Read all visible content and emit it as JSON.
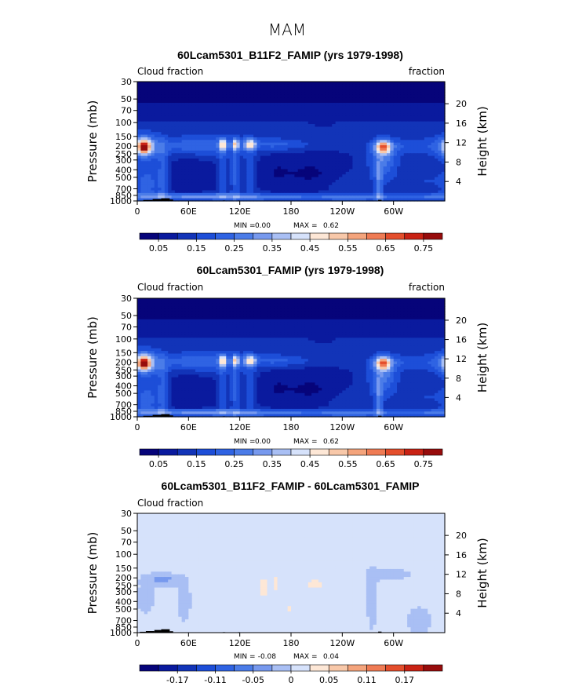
{
  "figure_title": "MAM",
  "chart_data": [
    {
      "type": "heatmap",
      "title": "60Lcam5301_B11F2_FAMIP (yrs 1979-1998)",
      "left_label": "Cloud fraction",
      "right_label": "fraction",
      "ylabel": "Pressure (mb)",
      "y2label": "Height (km)",
      "x_ticks": [
        "0",
        "60E",
        "120E",
        "180",
        "120W",
        "60W"
      ],
      "x_tick_values": [
        0,
        60,
        120,
        180,
        240,
        300
      ],
      "xlim": [
        0,
        360
      ],
      "pressure_ticks": [
        "30",
        "50",
        "70",
        "100",
        "150",
        "200",
        "250",
        "300",
        "400",
        "500",
        "700",
        "850",
        "1000"
      ],
      "pressure_values": [
        30,
        50,
        70,
        100,
        150,
        200,
        250,
        300,
        400,
        500,
        700,
        850,
        1000
      ],
      "height_ticks": [
        "20",
        "16",
        "12",
        "8",
        "4"
      ],
      "height_values": [
        20,
        16,
        12,
        8,
        4
      ],
      "min_label": "MIN =",
      "min": "0.00",
      "max_label": "MAX =",
      "max": "0.62",
      "colorbar_labels": [
        "0.05",
        "0.15",
        "0.25",
        "0.35",
        "0.45",
        "0.55",
        "0.65",
        "0.75"
      ],
      "colorbar_levels": 16,
      "field": {
        "bg": 0.1,
        "blobs": [
          {
            "lon": 8,
            "p": 205,
            "sx": 5,
            "sy": 0.13,
            "a": 0.5
          },
          {
            "lon": 8,
            "p": 205,
            "sx": 11,
            "sy": 0.3,
            "a": 0.18
          },
          {
            "lon": 12,
            "p": 600,
            "sx": 10,
            "sy": 0.35,
            "a": 0.12
          },
          {
            "lon": 30,
            "p": 450,
            "sx": 5,
            "sy": 0.6,
            "a": 0.12
          },
          {
            "lon": 45,
            "p": 200,
            "sx": 50,
            "sy": 0.22,
            "a": 0.08
          },
          {
            "lon": 82,
            "p": 190,
            "sx": 25,
            "sy": 0.2,
            "a": 0.08
          },
          {
            "lon": 100,
            "p": 190,
            "sx": 3,
            "sy": 0.12,
            "a": 0.3
          },
          {
            "lon": 100,
            "p": 450,
            "sx": 4,
            "sy": 0.6,
            "a": 0.12
          },
          {
            "lon": 115,
            "p": 190,
            "sx": 3,
            "sy": 0.12,
            "a": 0.3
          },
          {
            "lon": 115,
            "p": 450,
            "sx": 4,
            "sy": 0.6,
            "a": 0.12
          },
          {
            "lon": 132,
            "p": 190,
            "sx": 5,
            "sy": 0.12,
            "a": 0.3
          },
          {
            "lon": 132,
            "p": 400,
            "sx": 5,
            "sy": 0.55,
            "a": 0.1
          },
          {
            "lon": 160,
            "p": 190,
            "sx": 22,
            "sy": 0.15,
            "a": 0.08
          },
          {
            "lon": 190,
            "p": 190,
            "sx": 45,
            "sy": 0.1,
            "a": 0.04
          },
          {
            "lon": 288,
            "p": 205,
            "sx": 6,
            "sy": 0.13,
            "a": 0.45
          },
          {
            "lon": 288,
            "p": 300,
            "sx": 12,
            "sy": 0.4,
            "a": 0.16
          },
          {
            "lon": 283,
            "p": 620,
            "sx": 3,
            "sy": 0.5,
            "a": 0.15
          },
          {
            "lon": 320,
            "p": 200,
            "sx": 35,
            "sy": 0.18,
            "a": 0.07
          },
          {
            "lon": 180,
            "p": 900,
            "sx": 180,
            "sy": 0.07,
            "a": 0.15
          },
          {
            "lon": 60,
            "p": 860,
            "sx": 60,
            "sy": 0.06,
            "a": 0.12
          },
          {
            "lon": 340,
            "p": 560,
            "sx": 20,
            "sy": 0.25,
            "a": 0.05
          },
          {
            "lon": 250,
            "p": 650,
            "sx": 25,
            "sy": 0.3,
            "a": 0.04
          },
          {
            "lon": 60,
            "p": 500,
            "sx": 22,
            "sy": 0.4,
            "a": -0.05
          },
          {
            "lon": 205,
            "p": 450,
            "sx": 25,
            "sy": 0.35,
            "a": -0.06
          },
          {
            "lon": 160,
            "p": 420,
            "sx": 14,
            "sy": 0.35,
            "a": -0.04
          }
        ]
      },
      "terrain": [
        {
          "lon0": 0,
          "lon1": 7,
          "p_top": 990
        },
        {
          "lon0": 7,
          "lon1": 18,
          "p_top": 972
        },
        {
          "lon0": 18,
          "lon1": 28,
          "p_top": 945
        },
        {
          "lon0": 28,
          "lon1": 38,
          "p_top": 925
        },
        {
          "lon0": 38,
          "lon1": 42,
          "p_top": 960
        },
        {
          "lon0": 100,
          "lon1": 103,
          "p_top": 985
        },
        {
          "lon0": 118,
          "lon1": 120,
          "p_top": 985
        },
        {
          "lon0": 282,
          "lon1": 286,
          "p_top": 970
        },
        {
          "lon0": 286,
          "lon1": 310,
          "p_top": 992
        }
      ]
    },
    {
      "type": "heatmap",
      "title": "60Lcam5301_FAMIP (yrs 1979-1998)",
      "left_label": "Cloud fraction",
      "right_label": "fraction",
      "ylabel": "Pressure (mb)",
      "y2label": "Height (km)",
      "x_ticks": [
        "0",
        "60E",
        "120E",
        "180",
        "120W",
        "60W"
      ],
      "x_tick_values": [
        0,
        60,
        120,
        180,
        240,
        300
      ],
      "xlim": [
        0,
        360
      ],
      "pressure_ticks": [
        "30",
        "50",
        "70",
        "100",
        "150",
        "200",
        "250",
        "300",
        "400",
        "500",
        "700",
        "850",
        "1000"
      ],
      "pressure_values": [
        30,
        50,
        70,
        100,
        150,
        200,
        250,
        300,
        400,
        500,
        700,
        850,
        1000
      ],
      "height_ticks": [
        "20",
        "16",
        "12",
        "8",
        "4"
      ],
      "height_values": [
        20,
        16,
        12,
        8,
        4
      ],
      "min_label": "MIN =",
      "min": "0.00",
      "max_label": "MAX =",
      "max": "0.62",
      "colorbar_labels": [
        "0.05",
        "0.15",
        "0.25",
        "0.35",
        "0.45",
        "0.55",
        "0.65",
        "0.75"
      ],
      "colorbar_levels": 16,
      "field": {
        "bg": 0.1,
        "blobs": [
          {
            "lon": 8,
            "p": 205,
            "sx": 5,
            "sy": 0.13,
            "a": 0.52
          },
          {
            "lon": 8,
            "p": 205,
            "sx": 11,
            "sy": 0.3,
            "a": 0.18
          },
          {
            "lon": 12,
            "p": 600,
            "sx": 10,
            "sy": 0.35,
            "a": 0.12
          },
          {
            "lon": 30,
            "p": 450,
            "sx": 5,
            "sy": 0.6,
            "a": 0.12
          },
          {
            "lon": 45,
            "p": 200,
            "sx": 50,
            "sy": 0.22,
            "a": 0.08
          },
          {
            "lon": 82,
            "p": 190,
            "sx": 25,
            "sy": 0.2,
            "a": 0.08
          },
          {
            "lon": 100,
            "p": 190,
            "sx": 3,
            "sy": 0.12,
            "a": 0.3
          },
          {
            "lon": 100,
            "p": 450,
            "sx": 4,
            "sy": 0.6,
            "a": 0.12
          },
          {
            "lon": 115,
            "p": 190,
            "sx": 3,
            "sy": 0.12,
            "a": 0.3
          },
          {
            "lon": 115,
            "p": 450,
            "sx": 4,
            "sy": 0.6,
            "a": 0.12
          },
          {
            "lon": 132,
            "p": 190,
            "sx": 5,
            "sy": 0.12,
            "a": 0.3
          },
          {
            "lon": 132,
            "p": 400,
            "sx": 5,
            "sy": 0.55,
            "a": 0.1
          },
          {
            "lon": 160,
            "p": 190,
            "sx": 22,
            "sy": 0.15,
            "a": 0.08
          },
          {
            "lon": 190,
            "p": 190,
            "sx": 45,
            "sy": 0.1,
            "a": 0.04
          },
          {
            "lon": 288,
            "p": 205,
            "sx": 6,
            "sy": 0.13,
            "a": 0.45
          },
          {
            "lon": 288,
            "p": 300,
            "sx": 12,
            "sy": 0.4,
            "a": 0.16
          },
          {
            "lon": 283,
            "p": 620,
            "sx": 3,
            "sy": 0.5,
            "a": 0.15
          },
          {
            "lon": 320,
            "p": 200,
            "sx": 35,
            "sy": 0.18,
            "a": 0.07
          },
          {
            "lon": 180,
            "p": 900,
            "sx": 180,
            "sy": 0.07,
            "a": 0.15
          },
          {
            "lon": 60,
            "p": 860,
            "sx": 60,
            "sy": 0.06,
            "a": 0.12
          },
          {
            "lon": 340,
            "p": 560,
            "sx": 20,
            "sy": 0.25,
            "a": 0.05
          },
          {
            "lon": 250,
            "p": 650,
            "sx": 25,
            "sy": 0.3,
            "a": 0.04
          },
          {
            "lon": 60,
            "p": 500,
            "sx": 22,
            "sy": 0.4,
            "a": -0.05
          },
          {
            "lon": 205,
            "p": 450,
            "sx": 25,
            "sy": 0.35,
            "a": -0.06
          },
          {
            "lon": 160,
            "p": 420,
            "sx": 14,
            "sy": 0.35,
            "a": -0.04
          }
        ]
      },
      "terrain": [
        {
          "lon0": 0,
          "lon1": 7,
          "p_top": 990
        },
        {
          "lon0": 7,
          "lon1": 18,
          "p_top": 972
        },
        {
          "lon0": 18,
          "lon1": 28,
          "p_top": 945
        },
        {
          "lon0": 28,
          "lon1": 38,
          "p_top": 925
        },
        {
          "lon0": 38,
          "lon1": 42,
          "p_top": 960
        },
        {
          "lon0": 100,
          "lon1": 103,
          "p_top": 985
        },
        {
          "lon0": 118,
          "lon1": 120,
          "p_top": 985
        },
        {
          "lon0": 282,
          "lon1": 286,
          "p_top": 970
        },
        {
          "lon0": 286,
          "lon1": 310,
          "p_top": 992
        }
      ]
    },
    {
      "type": "heatmap",
      "title": "60Lcam5301_B11F2_FAMIP - 60Lcam5301_FAMIP",
      "left_label": "Cloud fraction",
      "right_label": "",
      "ylabel": "Pressure (mb)",
      "y2label": "Height (km)",
      "x_ticks": [
        "0",
        "60E",
        "120E",
        "180",
        "120W",
        "60W"
      ],
      "x_tick_values": [
        0,
        60,
        120,
        180,
        240,
        300
      ],
      "xlim": [
        0,
        360
      ],
      "pressure_ticks": [
        "30",
        "50",
        "70",
        "100",
        "150",
        "200",
        "250",
        "300",
        "400",
        "500",
        "700",
        "850",
        "1000"
      ],
      "pressure_values": [
        30,
        50,
        70,
        100,
        150,
        200,
        250,
        300,
        400,
        500,
        700,
        850,
        1000
      ],
      "height_ticks": [
        "20",
        "16",
        "12",
        "8",
        "4"
      ],
      "height_values": [
        20,
        16,
        12,
        8,
        4
      ],
      "min_label": "MIN =",
      "min": "-0.08",
      "max_label": "MAX =",
      "max": "0.04",
      "colorbar_labels": [
        "-0.17",
        "-0.11",
        "-0.05",
        "0",
        "0.05",
        "0.11",
        "0.17"
      ],
      "colorbar_levels": 16,
      "field": {
        "bg": 0.005,
        "blobs": [
          {
            "lon": 30,
            "p": 210,
            "sx": 12,
            "sy": 0.1,
            "a": -0.04
          },
          {
            "lon": 10,
            "p": 350,
            "sx": 8,
            "sy": 0.4,
            "a": -0.01
          },
          {
            "lon": 55,
            "p": 400,
            "sx": 8,
            "sy": 0.6,
            "a": -0.008
          },
          {
            "lon": 148,
            "p": 260,
            "sx": 4,
            "sy": 0.25,
            "a": 0.035
          },
          {
            "lon": 162,
            "p": 240,
            "sx": 4,
            "sy": 0.2,
            "a": 0.03
          },
          {
            "lon": 178,
            "p": 480,
            "sx": 4,
            "sy": 0.08,
            "a": 0.03
          },
          {
            "lon": 208,
            "p": 240,
            "sx": 8,
            "sy": 0.15,
            "a": 0.03
          },
          {
            "lon": 275,
            "p": 400,
            "sx": 5,
            "sy": 0.7,
            "a": -0.01
          },
          {
            "lon": 295,
            "p": 180,
            "sx": 20,
            "sy": 0.15,
            "a": -0.01
          },
          {
            "lon": 340,
            "p": 200,
            "sx": 5,
            "sy": 0.1,
            "a": 0.02
          },
          {
            "lon": 330,
            "p": 700,
            "sx": 15,
            "sy": 0.4,
            "a": -0.008
          }
        ]
      },
      "terrain": [
        {
          "lon0": 3,
          "lon1": 10,
          "p_top": 975
        },
        {
          "lon0": 10,
          "lon1": 20,
          "p_top": 955
        },
        {
          "lon0": 20,
          "lon1": 28,
          "p_top": 925
        },
        {
          "lon0": 28,
          "lon1": 38,
          "p_top": 905
        },
        {
          "lon0": 38,
          "lon1": 42,
          "p_top": 960
        },
        {
          "lon0": 100,
          "lon1": 103,
          "p_top": 985
        },
        {
          "lon0": 118,
          "lon1": 120,
          "p_top": 985
        },
        {
          "lon0": 282,
          "lon1": 286,
          "p_top": 970
        },
        {
          "lon0": 286,
          "lon1": 310,
          "p_top": 992
        }
      ]
    }
  ],
  "colors": {
    "palette": [
      "#06047a",
      "#0a1a9e",
      "#1234b8",
      "#1d4ed8",
      "#2f63e3",
      "#4b7ce8",
      "#7799ee",
      "#a9bff4",
      "#d6e2fb",
      "#fde7d6",
      "#f8c8a9",
      "#f4a47c",
      "#ef7b54",
      "#e44e2c",
      "#c92214",
      "#970c0c"
    ]
  }
}
